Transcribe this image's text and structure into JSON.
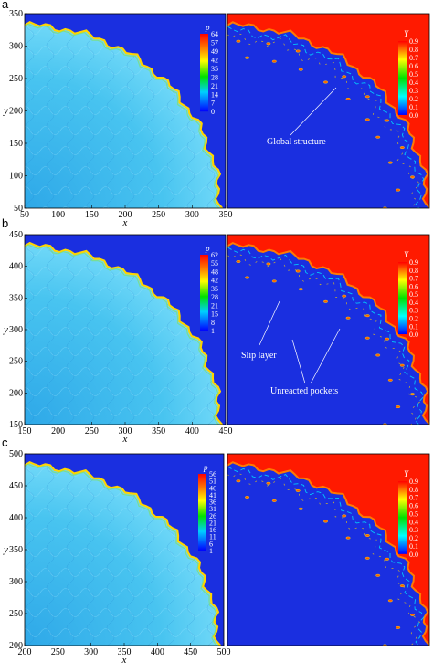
{
  "panels": [
    {
      "label": "a",
      "pressure": {
        "xlim": [
          50,
          350
        ],
        "ylim": [
          50,
          350
        ],
        "xticks": [
          "50",
          "100",
          "150",
          "200",
          "250",
          "300",
          "350"
        ],
        "yticks": [
          "50",
          "100",
          "150",
          "200",
          "250",
          "300",
          "350"
        ],
        "xlabel": "x",
        "ylabel": "y",
        "colorbar": {
          "title": "p",
          "ticks": [
            "64",
            "57",
            "49",
            "42",
            "35",
            "28",
            "21",
            "14",
            "7",
            "0"
          ]
        }
      },
      "fraction": {
        "colorbar": {
          "title": "Y",
          "ticks": [
            "0.9",
            "0.8",
            "0.7",
            "0.6",
            "0.5",
            "0.4",
            "0.3",
            "0.2",
            "0.1",
            "0.0"
          ]
        },
        "annotations": [
          {
            "text": "Global structure"
          }
        ]
      }
    },
    {
      "label": "b",
      "pressure": {
        "xlim": [
          150,
          450
        ],
        "ylim": [
          150,
          450
        ],
        "xticks": [
          "150",
          "200",
          "250",
          "300",
          "350",
          "400",
          "450"
        ],
        "yticks": [
          "150",
          "200",
          "250",
          "300",
          "350",
          "400",
          "450"
        ],
        "xlabel": "x",
        "ylabel": "y",
        "colorbar": {
          "title": "p",
          "ticks": [
            "62",
            "55",
            "48",
            "42",
            "35",
            "28",
            "21",
            "15",
            "8",
            "1"
          ]
        }
      },
      "fraction": {
        "colorbar": {
          "title": "Y",
          "ticks": [
            "0.9",
            "0.8",
            "0.7",
            "0.6",
            "0.5",
            "0.4",
            "0.3",
            "0.2",
            "0.1",
            "0.0"
          ]
        },
        "annotations": [
          {
            "text": "Slip layer"
          },
          {
            "text": "Unreacted pockets"
          }
        ]
      }
    },
    {
      "label": "c",
      "pressure": {
        "xlim": [
          200,
          500
        ],
        "ylim": [
          200,
          500
        ],
        "xticks": [
          "200",
          "250",
          "300",
          "350",
          "400",
          "450",
          "500"
        ],
        "yticks": [
          "200",
          "250",
          "300",
          "350",
          "400",
          "450",
          "500"
        ],
        "xlabel": "x",
        "ylabel": "y",
        "colorbar": {
          "title": "p",
          "ticks": [
            "56",
            "51",
            "46",
            "41",
            "36",
            "31",
            "26",
            "21",
            "16",
            "11",
            "6",
            "1"
          ]
        }
      },
      "fraction": {
        "colorbar": {
          "title": "Y",
          "ticks": [
            "0.9",
            "0.8",
            "0.7",
            "0.6",
            "0.5",
            "0.4",
            "0.3",
            "0.2",
            "0.1",
            "0.0"
          ]
        },
        "annotations": []
      }
    }
  ],
  "colors": {
    "background": "#1a2fe0",
    "products": "#ff1a00",
    "front": "#ffd400",
    "flow": "#3ec8f0"
  }
}
